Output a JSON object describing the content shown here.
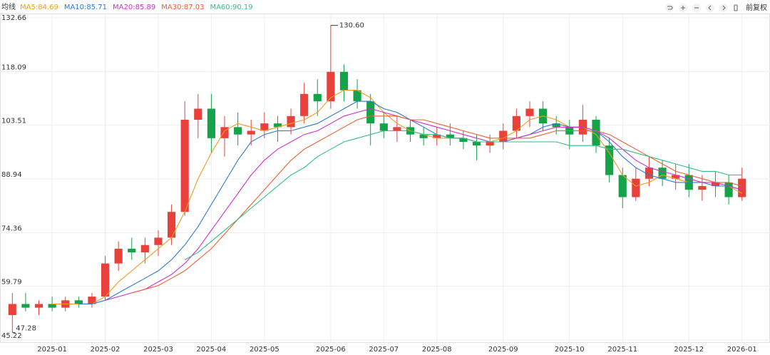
{
  "chart_data": {
    "type": "candlestick",
    "legend_title": "均线",
    "adjust_label": "前复权",
    "up_color": "#e8413b",
    "down_color": "#15a34a",
    "categories": [
      null,
      null,
      null,
      "2025-01",
      null,
      null,
      null,
      "2025-02",
      null,
      null,
      null,
      "2025-03",
      null,
      null,
      null,
      "2025-04",
      null,
      null,
      null,
      "2025-05",
      null,
      null,
      null,
      null,
      "2025-06",
      null,
      null,
      null,
      "2025-07",
      null,
      null,
      null,
      "2025-08",
      null,
      null,
      null,
      null,
      "2025-09",
      null,
      null,
      null,
      null,
      "2025-10",
      null,
      null,
      null,
      "2025-11",
      null,
      null,
      null,
      null,
      "2025-12",
      null,
      null,
      null,
      "2026-01"
    ],
    "open": [
      52,
      55,
      54,
      55,
      54,
      56,
      55,
      57,
      66,
      70,
      69,
      71,
      73,
      80,
      105,
      108,
      100,
      103,
      101,
      102,
      104,
      103,
      106,
      112,
      110,
      118,
      113,
      110,
      104,
      102,
      103,
      101,
      100,
      101,
      100,
      99,
      98,
      99,
      102,
      106,
      108,
      104,
      103,
      101,
      105,
      98,
      90,
      84,
      89,
      92,
      89,
      90,
      86,
      87,
      88,
      84
    ],
    "high": [
      58,
      58,
      56,
      57,
      57,
      57,
      58,
      68,
      72,
      73,
      73,
      75,
      82,
      110,
      112,
      112,
      106,
      107,
      105,
      107,
      106,
      108,
      115,
      116,
      130.6,
      120,
      116,
      112,
      107,
      106,
      105,
      103,
      103,
      104,
      102,
      101,
      101,
      104,
      108,
      110,
      110,
      106,
      105,
      109,
      106,
      100,
      92,
      92,
      95,
      94,
      93,
      93,
      90,
      91,
      90,
      92
    ],
    "low": [
      47.28,
      53,
      52,
      53,
      53,
      54,
      54,
      56,
      64,
      67,
      66,
      68,
      71,
      79,
      100,
      96,
      95,
      98,
      98,
      100,
      99,
      101,
      104,
      106,
      108,
      110,
      108,
      98,
      100,
      99,
      99,
      98,
      98,
      98,
      97,
      94,
      96,
      97,
      100,
      103,
      102,
      101,
      97,
      99,
      96,
      88,
      81,
      83,
      87,
      87,
      86,
      84,
      83,
      84,
      82,
      83
    ],
    "close": [
      55,
      54,
      55,
      54,
      56,
      55,
      57,
      66,
      70,
      69,
      71,
      73,
      80,
      105,
      108,
      100,
      103,
      101,
      102,
      104,
      103,
      106,
      112,
      110,
      118,
      113,
      110,
      104,
      102,
      103,
      101,
      100,
      101,
      100,
      99,
      98,
      99,
      102,
      106,
      108,
      104,
      103,
      101,
      105,
      98,
      90,
      84,
      89,
      92,
      89,
      90,
      86,
      87,
      88,
      84,
      89
    ],
    "series": [
      {
        "name": "MA5:84.69",
        "color": "#f29a1f",
        "values": [
          null,
          null,
          null,
          55,
          55,
          55,
          55,
          57,
          61,
          64,
          67,
          70,
          73,
          80,
          89,
          96,
          102,
          104,
          103,
          102,
          103,
          104,
          105,
          107,
          111,
          113,
          113,
          111,
          107,
          104,
          102,
          101,
          100,
          100,
          100,
          99,
          99,
          100,
          102,
          105,
          106,
          105,
          103,
          103,
          101,
          96,
          90,
          87,
          88,
          90,
          89,
          88,
          88,
          87,
          87,
          85
        ]
      },
      {
        "name": "MA10:85.71",
        "color": "#2a7bd4",
        "values": [
          null,
          null,
          null,
          null,
          null,
          55,
          55,
          56,
          58,
          60,
          62,
          64,
          67,
          71,
          76,
          82,
          88,
          94,
          99,
          101,
          102,
          102,
          103,
          104,
          106,
          108,
          110,
          110,
          108,
          107,
          105,
          103,
          101,
          100,
          100,
          99,
          99,
          99,
          100,
          101,
          103,
          104,
          103,
          103,
          102,
          99,
          95,
          92,
          90,
          89,
          88,
          88,
          88,
          87,
          87,
          86
        ]
      },
      {
        "name": "MA20:85.89",
        "color": "#d12fc9",
        "values": [
          null,
          null,
          null,
          null,
          null,
          null,
          null,
          56,
          57,
          58,
          59,
          61,
          63,
          66,
          70,
          75,
          80,
          85,
          90,
          94,
          97,
          99,
          101,
          102,
          104,
          106,
          107,
          108,
          107,
          106,
          105,
          104,
          103,
          102,
          101,
          100,
          99,
          99,
          100,
          101,
          102,
          103,
          103,
          103,
          102,
          100,
          97,
          94,
          92,
          91,
          90,
          89,
          88,
          88,
          87,
          86
        ]
      },
      {
        "name": "MA30:87.03",
        "color": "#f0602f",
        "values": [
          null,
          null,
          null,
          null,
          null,
          null,
          null,
          null,
          null,
          58,
          59,
          60,
          62,
          64,
          67,
          70,
          74,
          78,
          82,
          86,
          90,
          94,
          97,
          99,
          101,
          103,
          105,
          106,
          106,
          106,
          105,
          105,
          104,
          103,
          102,
          101,
          100,
          100,
          100,
          100,
          101,
          102,
          102,
          102,
          102,
          101,
          99,
          97,
          95,
          93,
          91,
          90,
          89,
          88,
          88,
          87
        ]
      },
      {
        "name": "MA60:90.19",
        "color": "#2fbf83",
        "values": [
          null,
          null,
          null,
          null,
          null,
          null,
          null,
          null,
          null,
          null,
          null,
          null,
          null,
          67,
          69,
          72,
          75,
          78,
          81,
          84,
          87,
          90,
          92,
          95,
          97,
          99,
          100,
          101,
          102,
          102,
          102,
          101,
          101,
          100,
          100,
          99,
          99,
          99,
          99,
          99,
          99,
          99,
          98,
          98,
          98,
          97,
          97,
          96,
          95,
          94,
          93,
          92,
          91,
          91,
          90,
          90
        ]
      }
    ],
    "ylim": [
      45.22,
      132.66
    ],
    "yticks": [
      45.22,
      59.79,
      74.36,
      88.94,
      103.51,
      118.09,
      132.66
    ],
    "grid": true,
    "max_marker": {
      "value": 130.6,
      "label": "130.60"
    },
    "min_marker": 47.28
  }
}
